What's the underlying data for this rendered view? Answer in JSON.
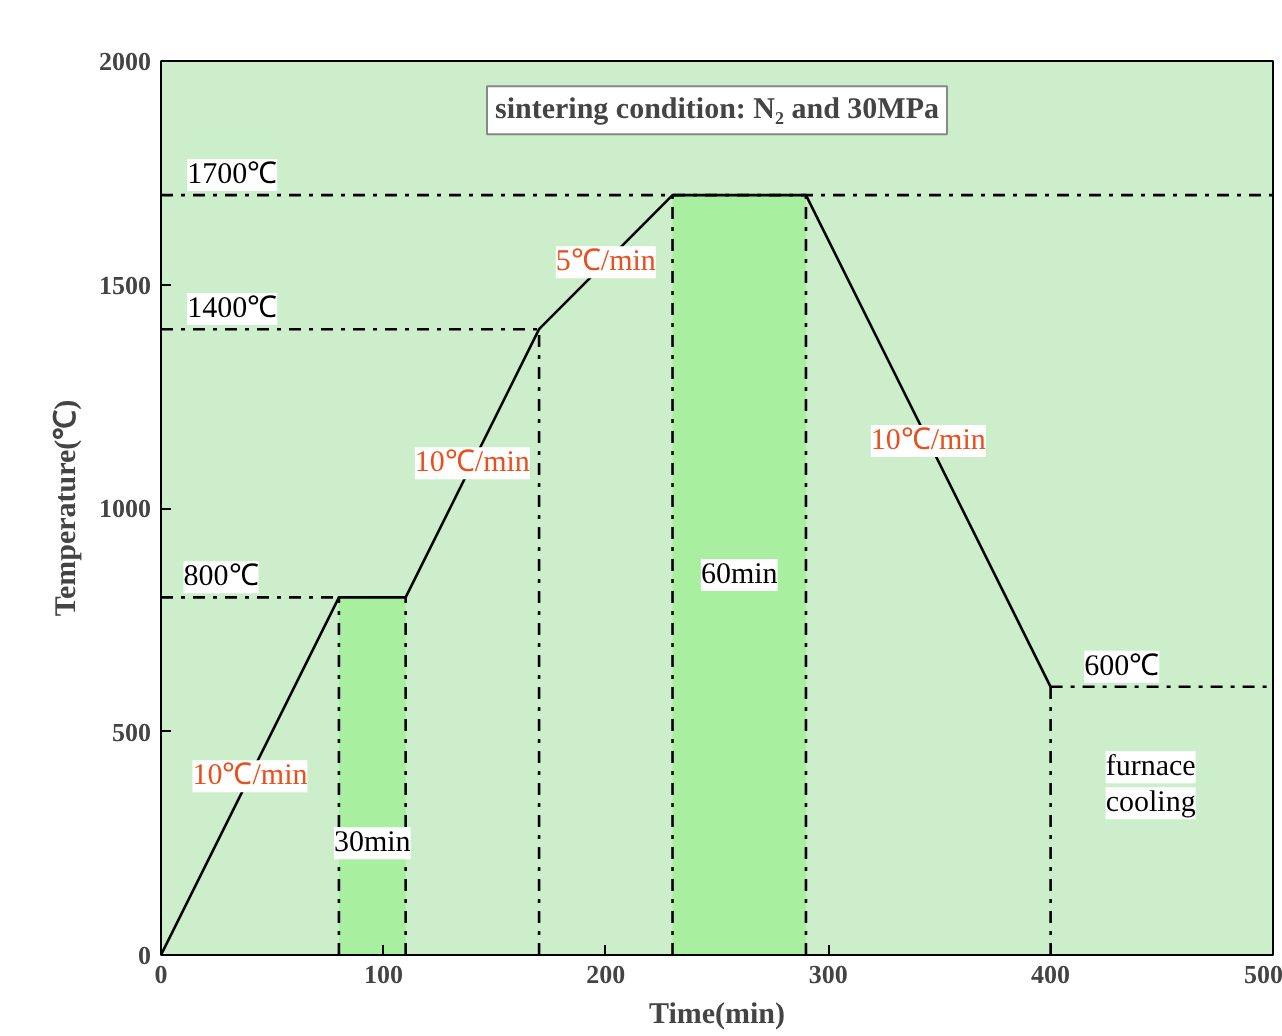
{
  "chart_data": {
    "type": "line",
    "title": "sintering condition: N₂ and 30MPa",
    "xlabel": "Time(min)",
    "ylabel": "Temperature(℃)",
    "xlim": [
      0,
      500
    ],
    "xticks": [
      0,
      100,
      200,
      300,
      400,
      500
    ],
    "ylim": [
      0,
      2000
    ],
    "yticks": [
      0,
      500,
      1000,
      1500,
      2000
    ],
    "grid": false,
    "series": [
      {
        "type": "area",
        "color": "#a8f0a0",
        "x": [
          80,
          110
        ],
        "values": [
          800,
          800
        ]
      },
      {
        "type": "area",
        "color": "#a8f0a0",
        "x": [
          230,
          290
        ],
        "values": [
          1700,
          1700
        ]
      },
      {
        "color": "#000000",
        "x": [
          0,
          80,
          110,
          170,
          230,
          290,
          400
        ],
        "values": [
          0,
          800,
          800,
          1400,
          1700,
          1700,
          600
        ]
      },
      {
        "color": "#000000",
        "line_style": "dashed",
        "x": [
          0,
          80
        ],
        "values": [
          800,
          800
        ]
      },
      {
        "color": "#000000",
        "line_style": "dashed",
        "x": [
          0,
          170
        ],
        "values": [
          1400,
          1400
        ]
      },
      {
        "color": "#000000",
        "line_style": "dashed",
        "x": [
          0,
          500
        ],
        "values": [
          1700,
          1700
        ]
      },
      {
        "color": "#000000",
        "line_style": "dashed",
        "x": [
          400,
          500
        ],
        "values": [
          600,
          600
        ]
      },
      {
        "color": "#000000",
        "line_style": "dashed",
        "x": [
          80,
          80
        ],
        "values": [
          0,
          800
        ]
      },
      {
        "color": "#000000",
        "line_style": "dashed",
        "x": [
          110,
          110
        ],
        "values": [
          0,
          800
        ]
      },
      {
        "color": "#000000",
        "line_style": "dashed",
        "x": [
          170,
          170
        ],
        "values": [
          0,
          1400
        ]
      },
      {
        "color": "#000000",
        "line_style": "dashed",
        "x": [
          230,
          230
        ],
        "values": [
          0,
          1700
        ]
      },
      {
        "color": "#000000",
        "line_style": "dashed",
        "x": [
          290,
          290
        ],
        "values": [
          0,
          1700
        ]
      },
      {
        "color": "#000000",
        "line_style": "dashed",
        "x": [
          400,
          400
        ],
        "values": [
          0,
          600
        ]
      }
    ],
    "annotations": [
      "1700℃",
      "1400℃",
      "800℃",
      "600℃",
      "furnace\ncooling",
      "30min",
      "60min",
      {
        "text": "10℃/min",
        "x": 40,
        "y": 400
      },
      {
        "text": "10℃/min",
        "x": 140,
        "y": 1100
      },
      {
        "text": "5℃/min",
        "x": 200,
        "y": 1550
      },
      {
        "text": "10℃/min",
        "x": 345,
        "y": 1150
      }
    ]
  }
}
